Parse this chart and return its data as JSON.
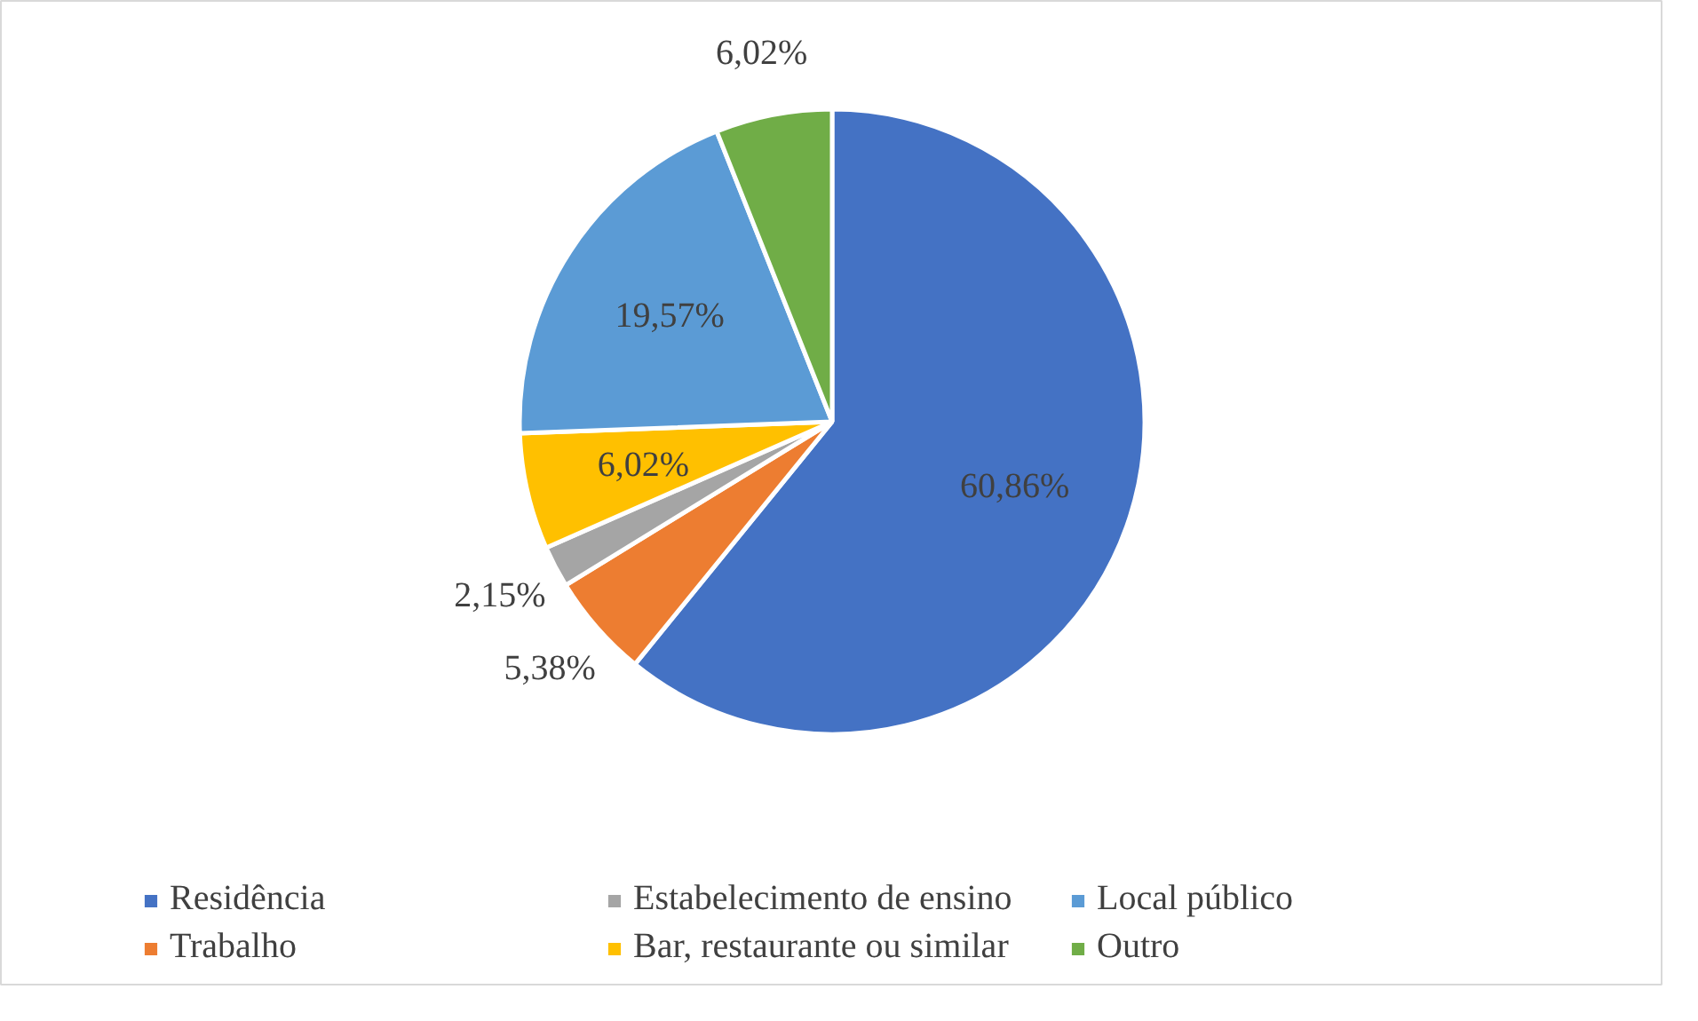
{
  "chart_data": {
    "type": "pie",
    "categories": [
      "Residência",
      "Trabalho",
      "Estabelecimento de ensino",
      "Bar, restaurante ou similar",
      "Local público",
      "Outro"
    ],
    "values": [
      60.86,
      5.38,
      2.15,
      6.02,
      19.57,
      6.02
    ],
    "colors": [
      "#4472c4",
      "#ed7d31",
      "#a5a5a5",
      "#ffc000",
      "#5b9bd5",
      "#70ad47"
    ],
    "value_labels": [
      "60,86%",
      "5,38%",
      "2,15%",
      "6,02%",
      "19,57%",
      "6,02%"
    ],
    "legend": "bottom"
  }
}
